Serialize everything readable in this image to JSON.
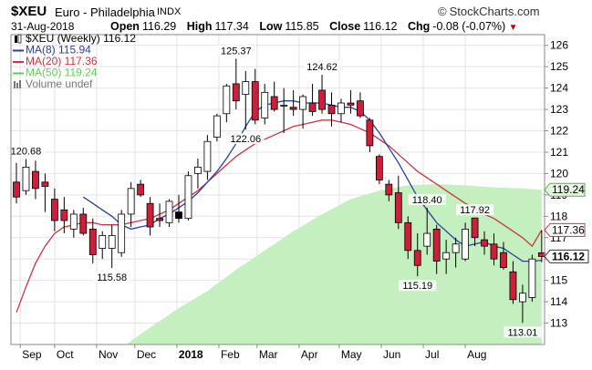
{
  "header": {
    "symbol": "$XEU",
    "description": "Euro - Philadelphia",
    "exchange": "INDX",
    "brand": "StockCharts.com",
    "date": "31-Aug-2018",
    "open_label": "Open",
    "open": "116.29",
    "high_label": "High",
    "high": "117.34",
    "low_label": "Low",
    "low": "115.85",
    "close_label": "Close",
    "close": "116.12",
    "chg_label": "Chg",
    "chg": "-0.08 (-0.07%)",
    "chg_arrow": "▼"
  },
  "legend": [
    {
      "text": "$XEU (Weekly) 116.12",
      "color": "#000000",
      "marker": "candle"
    },
    {
      "text": "MA(8) 115.94",
      "color": "#2a3fa0",
      "marker": "line"
    },
    {
      "text": "MA(20) 117.36",
      "color": "#cc3344",
      "marker": "line"
    },
    {
      "text": "MA(50) 119.24",
      "color": "#66cc55",
      "marker": "line"
    },
    {
      "text": "Volume undef",
      "color": "#777777",
      "marker": "bars"
    }
  ],
  "colors": {
    "up_body": "#ffffff",
    "down_body": "#cc1f3c",
    "black_body": "#000000",
    "wick": "#000000",
    "ma8": "#2a3fa0",
    "ma20": "#cc3344",
    "ma50_fill": "#c4f0c0",
    "grid": "#e4e4e4"
  },
  "chart_data": {
    "type": "candlestick",
    "title": "$XEU (Weekly) 116.12",
    "y_range": [
      112.0,
      126.5
    ],
    "y_ticks": [
      113,
      114,
      115,
      116,
      117,
      118,
      119,
      120,
      121,
      122,
      123,
      124,
      125,
      126
    ],
    "x_ticks": [
      {
        "label": "Sep",
        "week": 0.4,
        "bold": false
      },
      {
        "label": "Oct",
        "week": 4.0,
        "bold": false
      },
      {
        "label": "Nov",
        "week": 8.4,
        "bold": false
      },
      {
        "label": "Dec",
        "week": 12.4,
        "bold": false
      },
      {
        "label": "2018",
        "week": 16.8,
        "bold": true
      },
      {
        "label": "Feb",
        "week": 21.2,
        "bold": false
      },
      {
        "label": "Mar",
        "week": 25.2,
        "bold": false
      },
      {
        "label": "Apr",
        "week": 29.6,
        "bold": false
      },
      {
        "label": "May",
        "week": 33.8,
        "bold": false
      },
      {
        "label": "Jun",
        "week": 38.2,
        "bold": false
      },
      {
        "label": "Jul",
        "week": 42.6,
        "bold": false
      },
      {
        "label": "Aug",
        "week": 47.0,
        "bold": false
      }
    ],
    "candles": [
      {
        "o": 119.6,
        "h": 120.5,
        "l": 118.6,
        "c": 118.9
      },
      {
        "o": 119.2,
        "h": 120.68,
        "l": 119.0,
        "c": 120.3
      },
      {
        "o": 120.1,
        "h": 120.6,
        "l": 118.8,
        "c": 119.3
      },
      {
        "o": 119.6,
        "h": 120.0,
        "l": 118.2,
        "c": 119.4
      },
      {
        "o": 118.8,
        "h": 119.3,
        "l": 117.3,
        "c": 117.8
      },
      {
        "o": 118.3,
        "h": 118.9,
        "l": 117.2,
        "c": 117.8
      },
      {
        "o": 117.4,
        "h": 118.3,
        "l": 117.0,
        "c": 118.1
      },
      {
        "o": 118.1,
        "h": 118.4,
        "l": 117.1,
        "c": 117.2
      },
      {
        "o": 117.4,
        "h": 117.9,
        "l": 115.8,
        "c": 116.2
      },
      {
        "o": 116.5,
        "h": 117.3,
        "l": 116.0,
        "c": 117.1
      },
      {
        "o": 116.5,
        "h": 117.6,
        "l": 115.58,
        "c": 117.1
      },
      {
        "o": 116.3,
        "h": 118.3,
        "l": 116.1,
        "c": 118.1
      },
      {
        "o": 118.1,
        "h": 119.6,
        "l": 117.5,
        "c": 119.3
      },
      {
        "o": 119.5,
        "h": 119.7,
        "l": 118.9,
        "c": 119.0
      },
      {
        "o": 118.6,
        "h": 118.9,
        "l": 117.1,
        "c": 117.5
      },
      {
        "o": 117.9,
        "h": 118.6,
        "l": 117.5,
        "c": 117.8
      },
      {
        "o": 117.7,
        "h": 118.8,
        "l": 117.5,
        "c": 118.7
      },
      {
        "o": 118.2,
        "h": 119.0,
        "l": 117.7,
        "c": 117.9
      },
      {
        "o": 117.9,
        "h": 120.1,
        "l": 117.8,
        "c": 119.9
      },
      {
        "o": 120.0,
        "h": 120.7,
        "l": 119.3,
        "c": 120.3
      },
      {
        "o": 120.1,
        "h": 121.8,
        "l": 119.7,
        "c": 121.5
      },
      {
        "o": 121.7,
        "h": 122.8,
        "l": 121.5,
        "c": 122.7
      },
      {
        "o": 122.8,
        "h": 124.2,
        "l": 122.4,
        "c": 124.1
      },
      {
        "o": 124.2,
        "h": 125.37,
        "l": 123.0,
        "c": 123.4
      },
      {
        "o": 123.7,
        "h": 124.8,
        "l": 122.06,
        "c": 124.3
      },
      {
        "o": 124.3,
        "h": 124.9,
        "l": 122.3,
        "c": 122.5
      },
      {
        "o": 122.6,
        "h": 124.2,
        "l": 122.3,
        "c": 123.8
      },
      {
        "o": 123.6,
        "h": 124.3,
        "l": 122.9,
        "c": 123.0
      },
      {
        "o": 123.2,
        "h": 124.0,
        "l": 121.9,
        "c": 123.2
      },
      {
        "o": 123.1,
        "h": 123.9,
        "l": 122.7,
        "c": 123.0
      },
      {
        "o": 123.0,
        "h": 123.7,
        "l": 122.1,
        "c": 123.6
      },
      {
        "o": 123.3,
        "h": 124.2,
        "l": 122.7,
        "c": 122.9
      },
      {
        "o": 123.9,
        "h": 124.62,
        "l": 122.8,
        "c": 123.0
      },
      {
        "o": 123.2,
        "h": 123.8,
        "l": 122.2,
        "c": 122.8
      },
      {
        "o": 122.8,
        "h": 123.5,
        "l": 122.4,
        "c": 123.3
      },
      {
        "o": 123.3,
        "h": 123.9,
        "l": 122.8,
        "c": 123.2
      },
      {
        "o": 123.4,
        "h": 123.8,
        "l": 122.6,
        "c": 122.7
      },
      {
        "o": 122.5,
        "h": 122.6,
        "l": 121.0,
        "c": 121.3
      },
      {
        "o": 120.8,
        "h": 120.9,
        "l": 119.5,
        "c": 119.7
      },
      {
        "o": 119.5,
        "h": 119.7,
        "l": 118.7,
        "c": 119.0
      },
      {
        "o": 119.1,
        "h": 119.9,
        "l": 117.4,
        "c": 117.7
      },
      {
        "o": 117.7,
        "h": 118.0,
        "l": 116.0,
        "c": 116.4
      },
      {
        "o": 116.4,
        "h": 117.2,
        "l": 115.19,
        "c": 115.7
      },
      {
        "o": 116.6,
        "h": 118.4,
        "l": 116.2,
        "c": 117.2
      },
      {
        "o": 117.4,
        "h": 117.6,
        "l": 115.3,
        "c": 115.9
      },
      {
        "o": 116.0,
        "h": 116.9,
        "l": 115.3,
        "c": 116.3
      },
      {
        "o": 116.3,
        "h": 117.0,
        "l": 115.6,
        "c": 116.7
      },
      {
        "o": 116.0,
        "h": 117.7,
        "l": 115.9,
        "c": 117.4
      },
      {
        "o": 117.92,
        "h": 117.92,
        "l": 116.6,
        "c": 117.0
      },
      {
        "o": 116.9,
        "h": 117.3,
        "l": 116.2,
        "c": 116.6
      },
      {
        "o": 116.7,
        "h": 117.2,
        "l": 115.7,
        "c": 116.0
      },
      {
        "o": 116.3,
        "h": 116.8,
        "l": 115.5,
        "c": 115.6
      },
      {
        "o": 115.4,
        "h": 115.9,
        "l": 113.9,
        "c": 114.1
      },
      {
        "o": 114.0,
        "h": 114.8,
        "l": 113.01,
        "c": 114.4
      },
      {
        "o": 114.2,
        "h": 116.2,
        "l": 114.0,
        "c": 116.0
      },
      {
        "o": 116.29,
        "h": 117.34,
        "l": 115.85,
        "c": 116.12
      }
    ],
    "black_candle_index": 17,
    "ma8": [
      null,
      null,
      null,
      null,
      null,
      null,
      null,
      118.9,
      118.6,
      118.3,
      118.0,
      117.6,
      117.4,
      117.5,
      117.6,
      117.9,
      118.1,
      118.4,
      118.7,
      119.1,
      119.6,
      120.1,
      120.7,
      121.4,
      122.2,
      122.9,
      123.2,
      123.3,
      123.4,
      123.4,
      123.3,
      123.3,
      123.3,
      123.2,
      123.1,
      123.1,
      122.9,
      122.5,
      121.9,
      121.2,
      120.5,
      119.7,
      118.9,
      118.3,
      117.7,
      117.3,
      116.9,
      116.6,
      116.7,
      116.8,
      116.6,
      116.5,
      116.2,
      115.9,
      115.9,
      115.94
    ],
    "ma20": [
      113.5,
      114.7,
      115.8,
      116.6,
      117.2,
      117.5,
      117.6,
      117.7,
      117.7,
      117.6,
      117.6,
      117.6,
      117.7,
      117.8,
      117.9,
      118.1,
      118.3,
      118.6,
      118.9,
      119.2,
      119.6,
      120.0,
      120.4,
      120.8,
      121.1,
      121.4,
      121.6,
      121.8,
      122.0,
      122.2,
      122.3,
      122.4,
      122.5,
      122.5,
      122.4,
      122.3,
      122.1,
      121.9,
      121.6,
      121.3,
      120.9,
      120.5,
      120.1,
      119.8,
      119.5,
      119.2,
      118.9,
      118.6,
      118.4,
      118.1,
      117.9,
      117.6,
      117.3,
      117.0,
      116.6,
      117.36
    ],
    "ma50": [
      112.0,
      112.0,
      112.0,
      112.0,
      112.0,
      112.0,
      112.0,
      112.0,
      112.0,
      112.0,
      112.0,
      112.0,
      112.0,
      112.0,
      112.0,
      112.0,
      112.0,
      112.0,
      112.0,
      112.0,
      112.0,
      112.0,
      112.0,
      112.0,
      112.0,
      112.0,
      112.0,
      112.0,
      112.0,
      112.0,
      112.0,
      112.0,
      112.0,
      112.0,
      112.0,
      112.0,
      112.0,
      112.0,
      112.0,
      112.0,
      112.0,
      112.0,
      112.0,
      112.0,
      112.0,
      112.0,
      112.0,
      112.0,
      112.0,
      112.0,
      112.0,
      112.0,
      112.0,
      112.0,
      112.0,
      112.0
    ],
    "ma50_points": [
      {
        "week": 11.5,
        "v": 112.0
      },
      {
        "week": 14,
        "v": 112.8
      },
      {
        "week": 17,
        "v": 113.7
      },
      {
        "week": 20,
        "v": 114.5
      },
      {
        "week": 23,
        "v": 115.5
      },
      {
        "week": 26,
        "v": 116.4
      },
      {
        "week": 29,
        "v": 117.3
      },
      {
        "week": 32,
        "v": 118.1
      },
      {
        "week": 35,
        "v": 118.8
      },
      {
        "week": 38,
        "v": 119.2
      },
      {
        "week": 41,
        "v": 119.45
      },
      {
        "week": 44,
        "v": 119.5
      },
      {
        "week": 47,
        "v": 119.45
      },
      {
        "week": 50,
        "v": 119.35
      },
      {
        "week": 53,
        "v": 119.3
      },
      {
        "week": 55,
        "v": 119.24
      }
    ],
    "annotations": [
      {
        "text": "120.68",
        "week": 1,
        "v": 120.68,
        "pos": "above"
      },
      {
        "text": "115.58",
        "week": 10,
        "v": 115.58,
        "pos": "below"
      },
      {
        "text": "125.37",
        "week": 23,
        "v": 125.37,
        "pos": "above"
      },
      {
        "text": "122.06",
        "week": 24,
        "v": 122.06,
        "pos": "below"
      },
      {
        "text": "124.62",
        "week": 32,
        "v": 124.62,
        "pos": "above"
      },
      {
        "text": "115.19",
        "week": 42,
        "v": 115.19,
        "pos": "below"
      },
      {
        "text": "118.40",
        "week": 43,
        "v": 118.4,
        "pos": "above"
      },
      {
        "text": "117.92",
        "week": 48,
        "v": 117.92,
        "pos": "above"
      },
      {
        "text": "113.01",
        "week": 53,
        "v": 113.01,
        "pos": "below"
      }
    ],
    "price_tags": [
      {
        "text": "119.24",
        "v": 119.24,
        "fill": "#e6f5e4",
        "stroke": "#66aa55",
        "bold": false
      },
      {
        "text": "117.36",
        "v": 117.36,
        "fill": "#ffffff",
        "stroke": "#cc3344",
        "bold": false
      },
      {
        "text": "116.12",
        "v": 116.12,
        "fill": "#ffffff",
        "stroke": "#333333",
        "bold": true
      }
    ]
  }
}
